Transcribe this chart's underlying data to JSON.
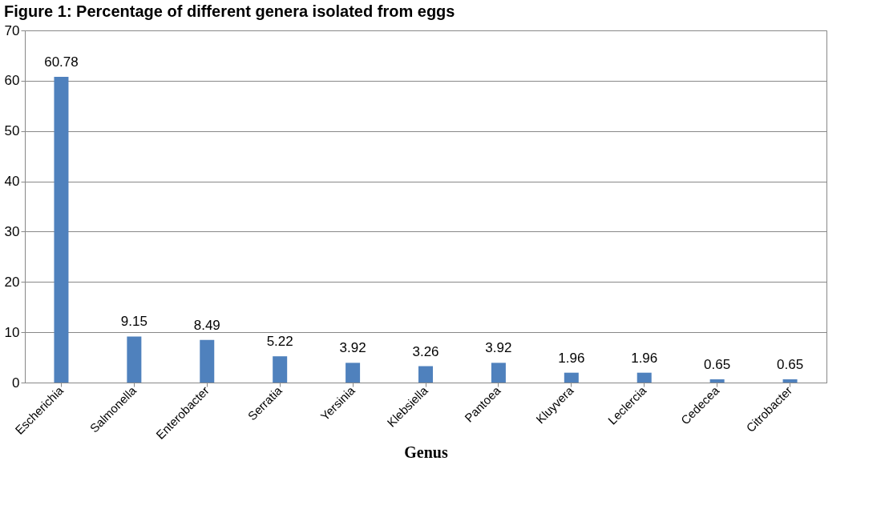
{
  "chart_data": {
    "type": "bar",
    "title": "Figure 1: Percentage of different genera isolated from eggs",
    "xlabel": "Genus",
    "categories": [
      "Escherichia",
      "Salmonella",
      "Enterobacter",
      "Serratia",
      "Yersinia",
      "Klebsiella",
      "Pantoea",
      "Kluyvera",
      "Leclercia",
      "Cedecea",
      "Citrobacter"
    ],
    "values": [
      60.78,
      9.15,
      8.49,
      5.22,
      3.92,
      3.26,
      3.92,
      1.96,
      1.96,
      0.65,
      0.65
    ],
    "color": "#4f81bd",
    "ylim": [
      0,
      70
    ],
    "yticks": [
      0,
      10,
      20,
      30,
      40,
      50,
      60,
      70
    ],
    "grid": "y",
    "data_labels": true
  }
}
